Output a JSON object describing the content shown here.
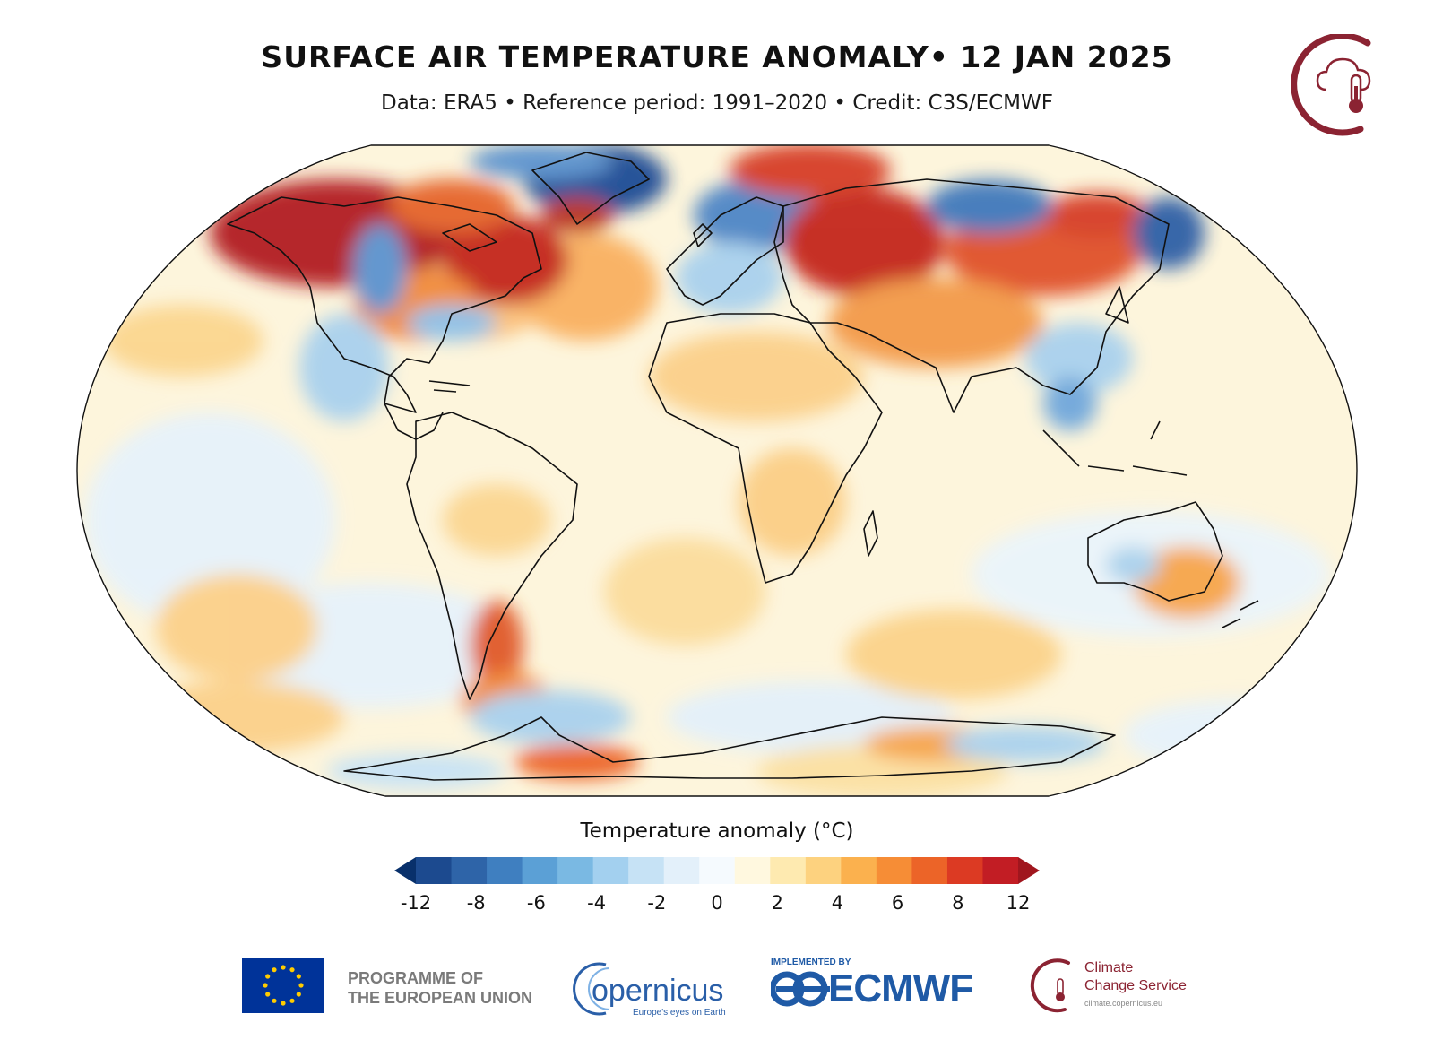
{
  "header": {
    "title": "SURFACE AIR TEMPERATURE ANOMALY• 12 JAN 2025",
    "subtitle": "Data: ERA5 • Reference period: 1991–2020 • Credit: C3S/ECMWF"
  },
  "colorbar": {
    "title": "Temperature anomaly (°C)",
    "ticks": [
      "-12",
      "-8",
      "-6",
      "-4",
      "-2",
      "0",
      "2",
      "4",
      "6",
      "8",
      "12"
    ],
    "colors": [
      "#08306b",
      "#1c4a8f",
      "#2e64a8",
      "#3f7fc0",
      "#5ba0d6",
      "#7ab9e3",
      "#a3d0ef",
      "#c6e2f5",
      "#e3f0fa",
      "#f5fafe",
      "#fff8df",
      "#feeab0",
      "#fdd27f",
      "#fbb14e",
      "#f68d36",
      "#ec6428",
      "#dc3a23",
      "#c21d24",
      "#a0161e"
    ]
  },
  "map": {
    "projection": "Robinson",
    "icon": "world-map-icon"
  },
  "footer": {
    "eu_text": "PROGRAMME OF\nTHE EUROPEAN UNION",
    "copernicus": "opernicus",
    "copernicus_tagline": "Europe's eyes on Earth",
    "ecmwf_implemented": "IMPLEMENTED BY",
    "ecmwf": "ECMWF",
    "c3s_name": "Climate\nChange Service",
    "c3s_url": "climate.copernicus.eu"
  },
  "colors": {
    "c3s_brand": "#8b2332",
    "ecmwf_blue": "#1f5aa6",
    "eu_blue": "#003399",
    "eu_gold": "#ffcc00"
  }
}
